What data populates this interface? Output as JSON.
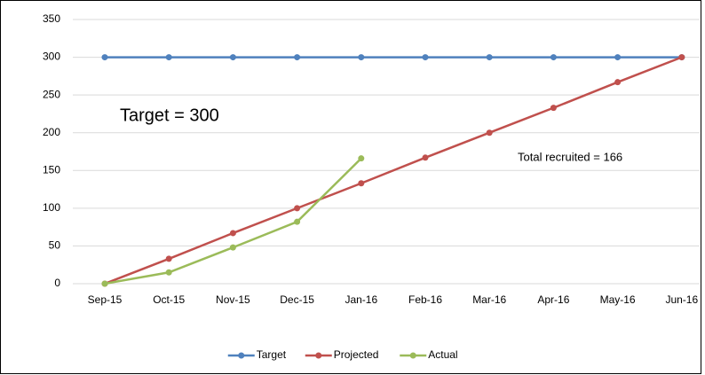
{
  "chart_data": {
    "type": "line",
    "categories": [
      "Sep-15",
      "Oct-15",
      "Nov-15",
      "Dec-15",
      "Jan-16",
      "Feb-16",
      "Mar-16",
      "Apr-16",
      "May-16",
      "Jun-16"
    ],
    "series": [
      {
        "name": "Target",
        "color": "#4f81bd",
        "values": [
          300,
          300,
          300,
          300,
          300,
          300,
          300,
          300,
          300,
          300
        ]
      },
      {
        "name": "Projected",
        "color": "#c0504d",
        "values": [
          0,
          33,
          67,
          100,
          133,
          167,
          200,
          233,
          267,
          300
        ]
      },
      {
        "name": "Actual",
        "color": "#9bbb59",
        "values": [
          0,
          15,
          48,
          82,
          166,
          null,
          null,
          null,
          null,
          null
        ]
      }
    ],
    "ylim": [
      0,
      350
    ],
    "yticks": [
      0,
      50,
      100,
      150,
      200,
      250,
      300,
      350
    ],
    "grid": true,
    "legend": "bottom",
    "annotations": [
      "Target = 300",
      "Total recruited = 166"
    ]
  }
}
